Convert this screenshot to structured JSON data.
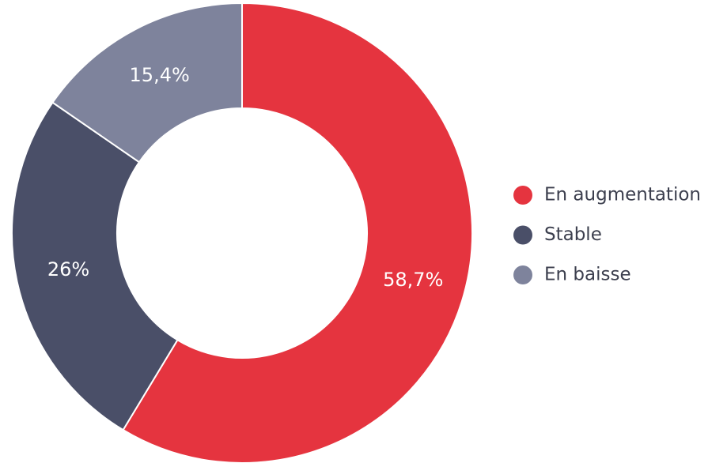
{
  "chart_data": {
    "type": "donut",
    "categories": [
      "En augmentation",
      "Stable",
      "En baisse"
    ],
    "values": [
      58.7,
      26,
      15.4
    ],
    "value_labels": [
      "58,7%",
      "26%",
      "15,4%"
    ],
    "colors": [
      "#e5343f",
      "#4a4f68",
      "#7e839c"
    ],
    "legend": "right"
  }
}
